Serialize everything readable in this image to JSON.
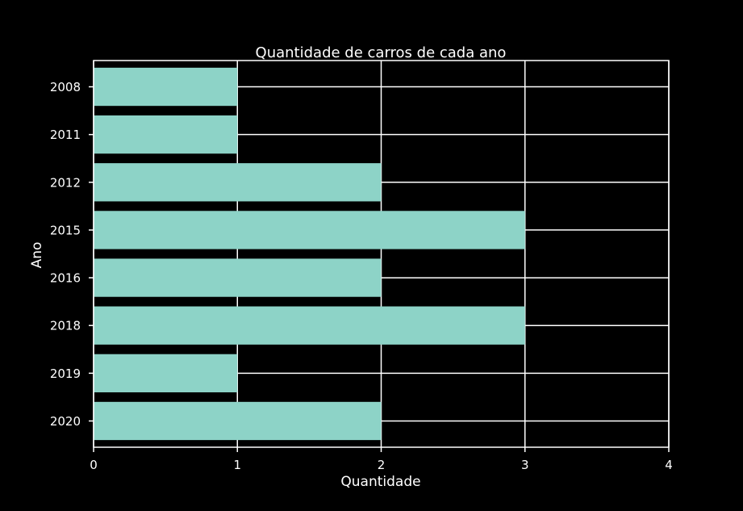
{
  "chart_data": {
    "type": "bar",
    "orientation": "horizontal",
    "title": "Quantidade de carros de cada ano",
    "xlabel": "Quantidade",
    "ylabel": "Ano",
    "categories": [
      "2008",
      "2011",
      "2012",
      "2015",
      "2016",
      "2018",
      "2019",
      "2020"
    ],
    "values": [
      1,
      1,
      2,
      3,
      2,
      3,
      1,
      2
    ],
    "xlim": [
      0,
      4
    ],
    "xticks": [
      "0",
      "1",
      "2",
      "3",
      "4"
    ],
    "grid": true,
    "colors": {
      "background": "#000000",
      "bar": "#8dd3c7",
      "grid": "#ffffff",
      "text": "#ffffff"
    }
  }
}
